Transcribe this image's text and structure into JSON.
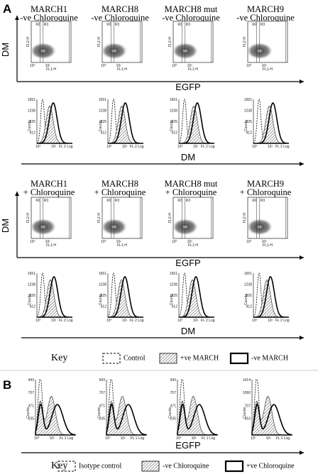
{
  "panel_a": {
    "label": "A",
    "conditions": [
      {
        "titles": [
          [
            "MARCH1",
            "-ve Chloroquine"
          ],
          [
            "MARCH8",
            "-ve Chloroquine"
          ],
          [
            "MARCH8 mut",
            "-ve Chloroquine"
          ],
          [
            "MARCH9",
            "-ve Chloroquine"
          ]
        ]
      },
      {
        "titles": [
          [
            "MARCH1",
            "+ Chloroquine"
          ],
          [
            "MARCH8",
            "+ Chloroquine"
          ],
          [
            "MARCH8 mut",
            "+ Chloroquine"
          ],
          [
            "MARCH9",
            "+ Chloroquine"
          ]
        ]
      }
    ],
    "dot_y_axis": "DM",
    "dot_x_axis": "EGFP",
    "hist_x_axis": "DM",
    "key": {
      "title": "Key",
      "items": [
        "Control",
        "+ve MARCH",
        "-ve MARCH"
      ]
    }
  },
  "dot_plot": {
    "gates": [
      "R2",
      "R3"
    ],
    "y_label": "FL2-H",
    "x_label": "FL1-H",
    "ticks": [
      "10⁰",
      "10¹"
    ]
  },
  "histogram_a": {
    "y_label": "Counts",
    "y_ticks": [
      "1651",
      "1238",
      "825",
      "412"
    ],
    "x_ticks": [
      "10⁰",
      "10¹"
    ],
    "x_label": "FL 2 Log"
  },
  "panel_b": {
    "label": "B",
    "plots": [
      {
        "y_ticks": [
          "943",
          "707",
          "471",
          "235"
        ]
      },
      {
        "y_ticks": [
          "943",
          "707",
          "471",
          "235"
        ]
      },
      {
        "y_ticks": [
          "943",
          "707",
          "471",
          "235"
        ]
      },
      {
        "y_ticks": [
          "1414",
          "1060",
          "707",
          "353"
        ]
      }
    ],
    "y_label": "Counts",
    "x_ticks": [
      "10⁰",
      "10¹"
    ],
    "x_label": "FL 1 Log",
    "axis": "EGFP",
    "key": {
      "title": "Key",
      "items": [
        "Isotype control",
        "-ve Chloroquine",
        "+ve Chloroquine"
      ]
    }
  }
}
